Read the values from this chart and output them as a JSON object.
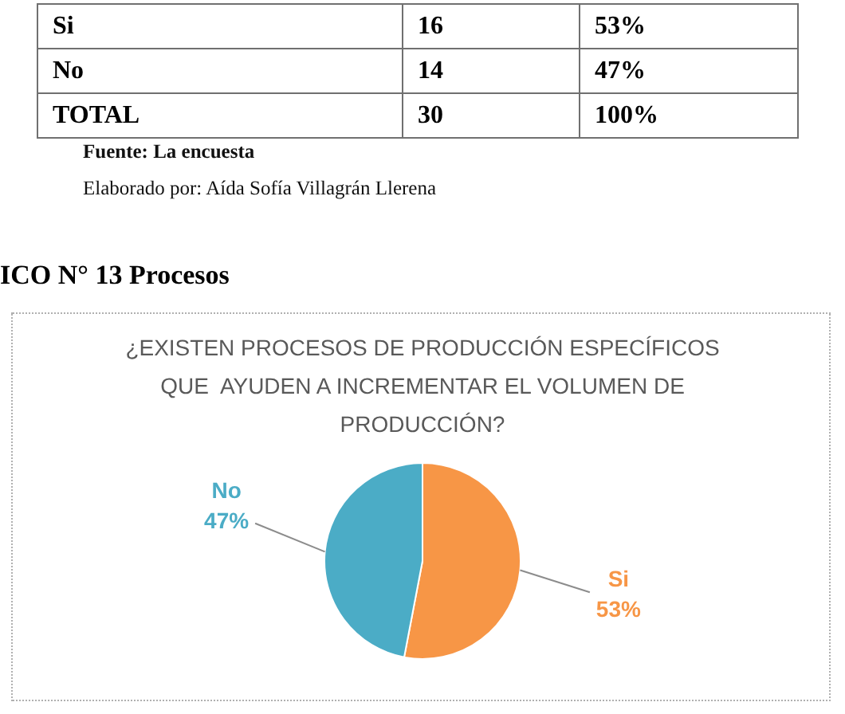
{
  "chart_data": [
    {
      "type": "other",
      "categories": [
        "Si",
        "No",
        "TOTAL"
      ],
      "series": [
        {
          "values": [
            16,
            14,
            30
          ]
        },
        {
          "values": [
            53,
            47,
            100
          ],
          "value_labels": [
            "53%",
            "47%",
            "100%"
          ]
        }
      ],
      "data_labels": true,
      "annotations": [
        "Fuente: La encuesta",
        "Elaborado por: Aída Sofía Villagrán Llerena"
      ]
    },
    {
      "type": "pie",
      "title": "¿EXISTEN PROCESOS DE PRODUCCIÓN ESPECÍFICOS QUE  AYUDEN A INCREMENTAR EL VOLUMEN DE PRODUCCIÓN?",
      "annotations": [
        "ICO N° 13 Procesos"
      ],
      "categories": [
        "Si",
        "No"
      ],
      "values": [
        53,
        47
      ],
      "value_labels": [
        "53%",
        "47%"
      ],
      "colors": [
        "#f79646",
        "#4bacc6"
      ],
      "legend": false
    }
  ]
}
